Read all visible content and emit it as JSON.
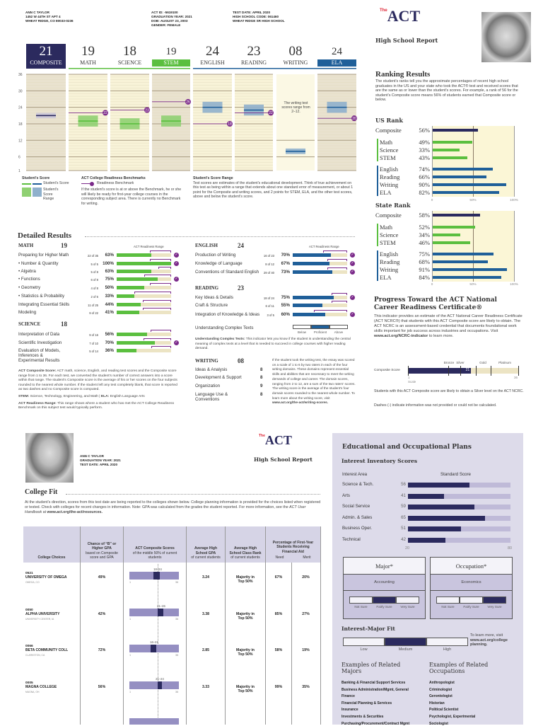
{
  "student": {
    "name": "ANN C TAYLOR",
    "address1": "1452 W 44TH ST APT 4",
    "address2": "WHEAT RIDGE, CO 80033-0236",
    "act_id": "ACT ID: -5619100",
    "grad_year": "GRADUATION YEAR: 2021",
    "dob": "DOB: AUGUST 23, 2003",
    "gender": "GENDER: FEMALE",
    "test_date": "TEST DATE: APRIL 2020",
    "hs_code": "HIGH SCHOOL CODE: 061460",
    "hs_name": "WHEAT RIDGE SR HIGH SCHOOL"
  },
  "brand": {
    "logo_the": "The",
    "logo_act": "ACT",
    "report_title": "High School Report"
  },
  "colors": {
    "navy": "#2b2a5e",
    "green": "#5bbf3f",
    "blue": "#1f5f99",
    "purple": "#7b2a8a",
    "beige": "#ece4c4",
    "lavender": "#dddbea",
    "bar_lavender": "#bfbad8"
  },
  "scores": [
    {
      "label": "COMPOSITE",
      "score": "21",
      "value": 21,
      "range": [
        20,
        22
      ],
      "benchmark": null
    },
    {
      "label": "MATH",
      "score": "19",
      "value": 19,
      "range": [
        17,
        21
      ],
      "benchmark": 22
    },
    {
      "label": "SCIENCE",
      "score": "18",
      "value": 18,
      "range": [
        16,
        20
      ],
      "benchmark": 23
    },
    {
      "label": "STEM",
      "score": "19",
      "value": 19,
      "range": [
        17,
        21
      ],
      "benchmark": 26
    },
    {
      "label": "ENGLISH",
      "score": "24",
      "value": 24,
      "range": [
        22,
        26
      ],
      "benchmark": 18
    },
    {
      "label": "READING",
      "score": "23",
      "value": 23,
      "range": [
        21,
        25
      ],
      "benchmark": 22
    },
    {
      "label": "WRITING",
      "score": "08",
      "value": 8,
      "range": [
        7,
        9
      ],
      "benchmark": null
    },
    {
      "label": "ELA",
      "score": "24",
      "value": 24,
      "range": [
        22,
        26
      ],
      "benchmark": 20
    }
  ],
  "score_axis": {
    "ticks": [
      "36",
      "30",
      "24",
      "18",
      "12",
      "6",
      "1"
    ],
    "writing_note": "The writing test scores range from 2–12."
  },
  "legend": {
    "student_score_title": "Student's Score",
    "student_score": "Student's Score",
    "student_range": "Student's Score Range",
    "benchmark_title": "ACT College Readiness Benchmarks",
    "benchmark": "Readiness Benchmark",
    "benchmark_text": "If the student's score is at or above the Benchmark, he or she will likely be ready for first-year college courses in the corresponding subject area. There is currently no Benchmark for writing.",
    "range_title": "Student's Score Range",
    "range_text": "Test scores are estimates of the student's educational development. Think of true achievement on this test as being within a range that extends about one standard error of measurement, or about 1 point for the Composite and writing scores, and 2 points for STEM, ELA, and the other test scores, above and below the student's score."
  },
  "detailed": {
    "title": "Detailed Results",
    "readiness_range": "ACT Readiness Range",
    "math": {
      "label": "MATH",
      "score": "19",
      "rows": [
        {
          "name": "Preparing for Higher Math",
          "count": "22 of 35",
          "pct": "63%",
          "v": 63,
          "rr": 61,
          "met": true
        },
        {
          "name": "• Number & Quantity",
          "count": "5 of 5",
          "pct": "100%",
          "v": 100,
          "rr": 61,
          "met": true
        },
        {
          "name": "• Algebra",
          "count": "5 of 8",
          "pct": "63%",
          "v": 63,
          "rr": 76,
          "met": false
        },
        {
          "name": "• Functions",
          "count": "6 of 8",
          "pct": "75%",
          "v": 75,
          "rr": 51,
          "met": true
        },
        {
          "name": "• Geometry",
          "count": "4 of 8",
          "pct": "50%",
          "v": 50,
          "rr": 61,
          "met": false
        },
        {
          "name": "• Statistics & Probability",
          "count": "2 of 6",
          "pct": "33%",
          "v": 33,
          "rr": 33,
          "met": false
        },
        {
          "name": "Integrating Essential Skills",
          "count": "11 of 25",
          "pct": "44%",
          "v": 44,
          "rr": 48,
          "met": false
        },
        {
          "name": "Modeling",
          "count": "9 of 22",
          "pct": "41%",
          "v": 41,
          "rr": 48,
          "met": false
        }
      ]
    },
    "science": {
      "label": "SCIENCE",
      "score": "18",
      "rows": [
        {
          "name": "Interpretation of Data",
          "count": "9 of 16",
          "pct": "56%",
          "v": 56,
          "rr": 62,
          "met": false
        },
        {
          "name": "Scientific Investigation",
          "count": "7 of 10",
          "pct": "70%",
          "v": 70,
          "rr": 49,
          "met": true
        },
        {
          "name": "Evaluation of Models, Inferences & Experimental Results",
          "count": "5 of 14",
          "pct": "36%",
          "v": 36,
          "rr": 63,
          "met": false
        }
      ]
    },
    "english": {
      "label": "ENGLISH",
      "score": "24",
      "rows": [
        {
          "name": "Production of Writing",
          "count": "16 of 23",
          "pct": "70%",
          "v": 70,
          "rr": 56,
          "met": true
        },
        {
          "name": "Knowledge of Language",
          "count": "8 of 12",
          "pct": "67%",
          "v": 67,
          "rr": 63,
          "met": true
        },
        {
          "name": "Conventions of Standard English",
          "count": "29 of 40",
          "pct": "73%",
          "v": 73,
          "rr": 63,
          "met": true
        }
      ]
    },
    "reading": {
      "label": "READING",
      "score": "23",
      "rows": [
        {
          "name": "Key Ideas & Details",
          "count": "18 of 24",
          "pct": "75%",
          "v": 75,
          "rr": 72,
          "met": true
        },
        {
          "name": "Craft & Structure",
          "count": "6 of 11",
          "pct": "55%",
          "v": 55,
          "rr": 72,
          "met": false
        },
        {
          "name": "Integration of Knowledge & Ideas",
          "count": "3 of 5",
          "pct": "60%",
          "v": 60,
          "rr": 39,
          "met": true
        }
      ]
    },
    "uct": {
      "label": "Understanding Complex Texts",
      "levels": [
        "Below",
        "Proficient",
        "Above"
      ],
      "selected": "Proficient",
      "note_title": "Understanding Complex Texts:",
      "note": "This indicator lets you know if the student is understanding the central meaning of complex texts at a level that is needed to succeed in college courses with higher reading demand."
    },
    "writing": {
      "label": "WRITING",
      "score": "08",
      "rows": [
        {
          "name": "Ideas & Analysis",
          "score": "8"
        },
        {
          "name": "Development & Support",
          "score": "8"
        },
        {
          "name": "Organization",
          "score": "9"
        },
        {
          "name": "Language Use & Conventions",
          "score": "8"
        }
      ],
      "note": "If the student took the writing test, the essay was scored on a scale of 1 to 6 by two raters in each of the four writing domains. These domains represent essential skills and abilities that are necessary to meet the writing demands of college and career. The domain scores, ranging from 2 to 12, are a sum of the two raters' scores. The writing score is the average of the student's four domain scores rounded to the nearest whole number. To learn more about the writing score, visit",
      "note_link": "www.act.org/the-act/writing-scores."
    },
    "notes": {
      "composite_title": "ACT Composite Score:",
      "composite": "ACT math, science, English, and reading test scores and the Composite score range from 1 to 36. For each test, we converted the student's number of correct answers into a score within that range. The student's Composite score is the average of his or her scores on the four subjects rounded to the nearest whole number. If the student left any test completely blank, that score is reported as two dashes and no Composite score is computed.",
      "stem_title": "STEM:",
      "stem": "Science, Technology, Engineering, and Math",
      "ela_title": "ELA:",
      "ela": "English Language Arts",
      "range_title": "ACT Readiness Range:",
      "range": "This range shows where a student who has met the ACT College Readiness Benchmark on this subject test would typically perform."
    }
  },
  "ranking": {
    "title": "Ranking Results",
    "text": "The student's ranks tell you the approximate percentages of recent high school graduates in the US and your state who took the ACT® test and received scores that are the same as or lower than the student's scores. For example, a rank of 56 for the student's Composite score means 56% of students earned that Composite score or below.",
    "axis": [
      "0",
      "50%",
      "100%"
    ],
    "us": {
      "title": "US Rank",
      "items": [
        {
          "label": "Composite",
          "pct": "56%",
          "v": 56
        },
        {
          "label": "Math",
          "pct": "49%",
          "v": 49
        },
        {
          "label": "Science",
          "pct": "33%",
          "v": 33
        },
        {
          "label": "STEM",
          "pct": "43%",
          "v": 43
        },
        {
          "label": "English",
          "pct": "74%",
          "v": 74
        },
        {
          "label": "Reading",
          "pct": "66%",
          "v": 66
        },
        {
          "label": "Writing",
          "pct": "90%",
          "v": 90
        },
        {
          "label": "ELA",
          "pct": "82%",
          "v": 82
        }
      ]
    },
    "state": {
      "title": "State Rank",
      "items": [
        {
          "label": "Composite",
          "pct": "58%",
          "v": 58
        },
        {
          "label": "Math",
          "pct": "52%",
          "v": 52
        },
        {
          "label": "Science",
          "pct": "34%",
          "v": 34
        },
        {
          "label": "STEM",
          "pct": "46%",
          "v": 46
        },
        {
          "label": "English",
          "pct": "75%",
          "v": 75
        },
        {
          "label": "Reading",
          "pct": "68%",
          "v": 68
        },
        {
          "label": "Writing",
          "pct": "91%",
          "v": 91
        },
        {
          "label": "ELA",
          "pct": "84%",
          "v": 84
        }
      ]
    }
  },
  "ncrc": {
    "title": "Progress Toward the ACT National Career Readiness Certificate®",
    "text": "This indicator provides an estimate of the ACT National Career Readiness Certificate (ACT NCRC®) that students with this ACT Composite score are likely to obtain. The ACT NCRC is an assessment-based credential that documents foundational work skills important for job success across industries and occupations. Visit",
    "link": "www.act.org/NCRC-indicator",
    "text_end": "to learn more.",
    "bar_label": "Composite Score",
    "score": "21",
    "value": 21,
    "levels": [
      "Bronze",
      "Silver",
      "Gold",
      "Platinum"
    ],
    "scale_min": "1",
    "scale_max": "36",
    "scale_label": "Scale",
    "result": "Students with this ACT Composite score are likely to obtain a Silver level on the ACT NCRC.",
    "dashes": "Dashes (-) indicate information was not provided or could not be calculated."
  },
  "college_fit": {
    "title": "College Fit",
    "text": "At the student's direction, scores from this test date are being reported to the colleges shown below. College planning information is provided for the choices listed when registered or tested. Check with colleges for recent changes in information. Note: GPA was calculated from the grades the student reported. For more information, see the",
    "handbook": "ACT User Handbook",
    "at": "at",
    "link": "www.act.org/the-act/resources.",
    "headers": {
      "choices": "College Choices",
      "chance_b": "Chance of “B” or Higher GPA",
      "chance_s": "based on Composite score and GPA",
      "comp_b": "ACT Composite Scores",
      "comp_s": "of the middle 50% of current students",
      "gpa_b": "Average High School GPA",
      "gpa_s": "of current students",
      "rank_b": "Average High School Class Rank",
      "rank_s": "of current students",
      "aid_b": "Percentage of First-Year Students Receiving Financial Aid",
      "need": "Need",
      "merit": "Merit"
    },
    "scale_min": "1",
    "scale_max": "36",
    "rows": [
      {
        "code": "0521",
        "name": "UNIVERSITY OF OMEGA",
        "city": "OMEGA, CO",
        "chance": "49%",
        "range": "18–24",
        "lo": 18,
        "hi": 24,
        "gpa": "3.24",
        "rank": "Majority in Top 50%",
        "need": "67%",
        "merit": "20%"
      },
      {
        "code": "0050",
        "name": "ALPHA UNIVERSITY",
        "city": "UNIVERSITY CENTER, IA",
        "chance": "42%",
        "range": "21–26",
        "lo": 21,
        "hi": 26,
        "gpa": "3.38",
        "rank": "Majority in Top 50%",
        "need": "85%",
        "merit": "27%"
      },
      {
        "code": "0066",
        "name": "BETA COMMUNITY COLL",
        "city": "CLARKSTON, CA",
        "chance": "72%",
        "range": "16–21",
        "lo": 16,
        "hi": 21,
        "gpa": "2.85",
        "rank": "Majority in Top 50%",
        "need": "58%",
        "merit": "19%"
      },
      {
        "code": "0005",
        "name": "MAGNA COLLEGE",
        "city": "MAGNA, OH",
        "chance": "56%",
        "range": "21–24",
        "lo": 21,
        "hi": 24,
        "gpa": "3.33",
        "rank": "Majority in Top 50%",
        "need": "99%",
        "merit": "35%"
      }
    ]
  },
  "plans": {
    "title": "Educational and Occupational Plans",
    "inventory_title": "Interest Inventory Scores",
    "col_area": "Interest Area",
    "col_score": "Standard Score",
    "axis_min": "20",
    "axis_max": "80",
    "items": [
      {
        "label": "Science & Tech.",
        "score": "56",
        "v": 56
      },
      {
        "label": "Arts",
        "score": "41",
        "v": 41
      },
      {
        "label": "Social Service",
        "score": "59",
        "v": 59
      },
      {
        "label": "Admin. & Sales",
        "score": "65",
        "v": 65
      },
      {
        "label": "Business Oper.",
        "score": "51",
        "v": 51
      },
      {
        "label": "Technical",
        "score": "42",
        "v": 42
      }
    ],
    "major": {
      "title": "Major*",
      "value": "Accounting",
      "certainty": "Fairly Sure"
    },
    "occupation": {
      "title": "Occupation*",
      "value": "Economics",
      "certainty": "Very Sure"
    },
    "certainty_levels": [
      "Not Sure",
      "Fairly Sure",
      "Very Sure"
    ],
    "fit": {
      "title": "Interest-Major Fit",
      "levels": [
        "Low",
        "Medium",
        "High"
      ],
      "selected": "Medium",
      "note": "To learn more, visit",
      "link": "www.act.org/college planning."
    },
    "majors_title": "Examples of Related Majors",
    "majors": [
      "Banking & Financial Support Services",
      "Business Administration/Mgmt, General",
      "Finance",
      "Financial Planning & Services",
      "Insurance",
      "Investments & Securities",
      "Purchasing/Procurement/Contract Mgmt"
    ],
    "occupations_title": "Examples of Related Occupations",
    "occupations": [
      "Anthropologist",
      "Criminologist",
      "Gerontologist",
      "Historian",
      "Political Scientist",
      "Psychologist, Experimental",
      "Sociologist"
    ]
  }
}
